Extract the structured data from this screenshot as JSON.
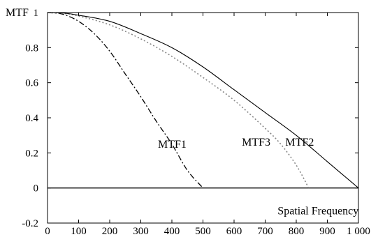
{
  "chart_data": {
    "type": "line",
    "xlabel": "Spatial Frequency",
    "ylabel": "MTF",
    "xlim": [
      0,
      1000
    ],
    "ylim": [
      -0.2,
      1
    ],
    "x_ticks": [
      0,
      100,
      200,
      300,
      400,
      500,
      600,
      700,
      800,
      900,
      1000
    ],
    "x_tick_labels": [
      "0",
      "100",
      "200",
      "300",
      "400",
      "500",
      "600",
      "700",
      "800",
      "900",
      "1 000"
    ],
    "y_ticks": [
      -0.2,
      0,
      0.2,
      0.4,
      0.6,
      0.8,
      1
    ],
    "y_tick_labels": [
      "-0.2",
      "0",
      "0.2",
      "0.4",
      "0.6",
      "0.8",
      "1"
    ],
    "grid": false,
    "series": [
      {
        "name": "MTF1",
        "line_style": "dash-dot",
        "color": "#000000",
        "x": [
          0,
          50,
          100,
          150,
          200,
          250,
          300,
          350,
          400,
          450,
          500
        ],
        "y": [
          1.0,
          0.99,
          0.95,
          0.88,
          0.78,
          0.65,
          0.52,
          0.38,
          0.25,
          0.1,
          0.0
        ]
      },
      {
        "name": "MTF3",
        "line_style": "dotted",
        "color": "#888888",
        "x": [
          0,
          50,
          100,
          200,
          300,
          400,
          500,
          600,
          700,
          750,
          800,
          840
        ],
        "y": [
          1.0,
          0.995,
          0.98,
          0.93,
          0.85,
          0.75,
          0.63,
          0.5,
          0.34,
          0.25,
          0.13,
          0.0
        ]
      },
      {
        "name": "MTF2",
        "line_style": "solid",
        "color": "#000000",
        "x": [
          0,
          50,
          100,
          200,
          300,
          400,
          500,
          600,
          700,
          800,
          900,
          1000
        ],
        "y": [
          1.0,
          0.997,
          0.985,
          0.95,
          0.88,
          0.8,
          0.69,
          0.56,
          0.43,
          0.3,
          0.15,
          0.0
        ]
      }
    ],
    "annotations": [
      {
        "text": "MTF1",
        "x": 355,
        "y": 0.25
      },
      {
        "text": "MTF3",
        "x": 625,
        "y": 0.26
      },
      {
        "text": "MTF2",
        "x": 765,
        "y": 0.26
      },
      {
        "text": "Spatial Frequency",
        "x": 740,
        "y": -0.13
      },
      {
        "text": "MTF",
        "x": -60,
        "y": 1.0
      }
    ]
  }
}
